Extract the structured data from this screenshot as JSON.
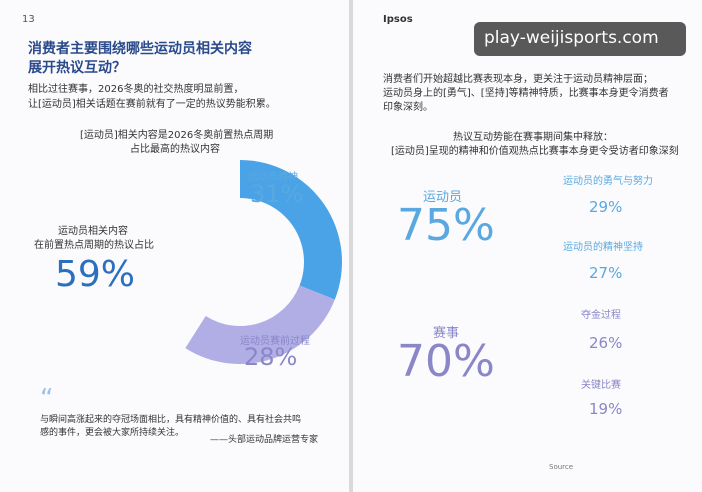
{
  "watermark": "play-weijisports.com",
  "left_page": {
    "page_number": "13",
    "title": [
      "消费者主要围绕哪些运动员相关内容",
      "展开热议互动？"
    ],
    "intro": [
      "相比过往赛事，2026冬奥的社交热度明显前置，",
      "让[运动员]相关话题在赛前就有了一定的热议势能积累。"
    ],
    "chart": {
      "title": [
        "[运动员]相关内容是2026冬奥前置热点周期",
        "占比最高的热议内容"
      ],
      "total_caption": [
        "运动员相关内容",
        "在前置热点周期的热议占比"
      ],
      "total": 59,
      "total_label": "59%",
      "segments": [
        {
          "label": "运动员精神",
          "value": 31,
          "value_label": "31%",
          "color": "#4aa3e6"
        },
        {
          "label": "运动员赛前过程",
          "value": 28,
          "value_label": "28%",
          "color": "#b1aee6"
        }
      ]
    },
    "quote": [
      "与瞬间高涨起来的夺冠场面相比，具有精神价值的、具有社会共鸣",
      "感的事件，更会被大家所持续关注。"
    ],
    "quote_source": "——头部运动品牌运营专家"
  },
  "right_page": {
    "logo": "Ipsos",
    "intro": [
      "消费者们开始超越比赛表现本身，更关注于运动员精神层面；",
      "运动员身上的[勇气]、[坚持]等精神特质，比赛事本身更令消费者",
      "印象深刻。"
    ],
    "chart_title": [
      "热议互动势能在赛事期间集中释放：",
      "[运动员]呈现的精神和价值观热点比赛事本身更令受访者印象深刻"
    ],
    "groups": [
      {
        "label": "运动员",
        "value": "75%",
        "items": [
          {
            "label": "运动员的勇气与努力",
            "value": "29%"
          },
          {
            "label": "运动员的精神坚持",
            "value": "27%"
          }
        ]
      },
      {
        "label": "赛事",
        "value": "70%",
        "items": [
          {
            "label": "夺金过程",
            "value": "26%"
          },
          {
            "label": "关键比赛",
            "value": "19%"
          }
        ]
      }
    ],
    "source": "Source"
  }
}
